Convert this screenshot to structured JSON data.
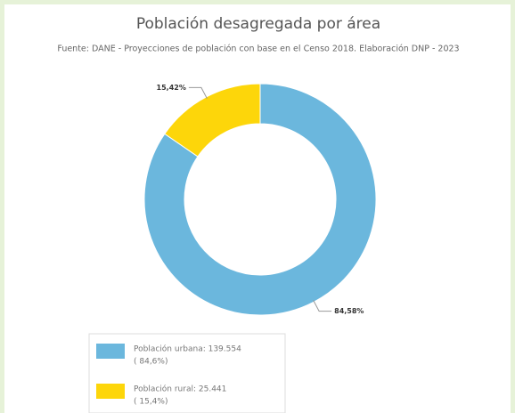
{
  "chart_data": {
    "type": "pie",
    "title": "Población desagregada por área",
    "subtitle": "Fuente: DANE - Proyecciones de población con base en el Censo 2018. Elaboración DNP - 2023",
    "categories": [
      "Población urbana: 139.554",
      "Población rural: 25.441"
    ],
    "legend_notes": [
      "( 84,6%)",
      "( 15,4%)"
    ],
    "values": [
      84.58,
      15.42
    ],
    "value_labels": [
      "84,58%",
      "15,42%"
    ],
    "colors": [
      "#6bb7dd",
      "#fdd60a"
    ],
    "donut": true
  }
}
